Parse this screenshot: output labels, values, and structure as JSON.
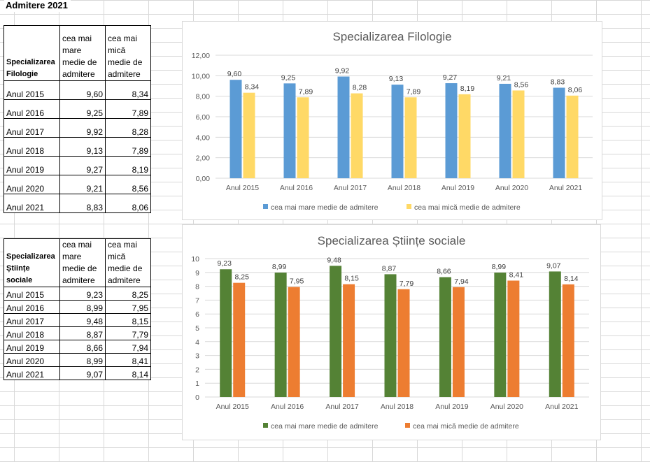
{
  "sheet": {
    "title": "Admitere 2021"
  },
  "table1": {
    "header": [
      "Specializarea Filologie",
      "cea mai mare medie de admitere",
      "cea mai mică medie de admitere"
    ],
    "rows": [
      [
        "Anul 2015",
        "9,60",
        "8,34"
      ],
      [
        "Anul 2016",
        "9,25",
        "7,89"
      ],
      [
        "Anul 2017",
        "9,92",
        "8,28"
      ],
      [
        "Anul 2018",
        "9,13",
        "7,89"
      ],
      [
        "Anul 2019",
        "9,27",
        "8,19"
      ],
      [
        "Anul 2020",
        "9,21",
        "8,56"
      ],
      [
        "Anul 2021",
        "8,83",
        "8,06"
      ]
    ]
  },
  "table2": {
    "header": [
      "Specializarea Științe sociale",
      "cea mai mare medie de admitere",
      "cea mai mică medie de admitere"
    ],
    "rows": [
      [
        "Anul 2015",
        "9,23",
        "8,25"
      ],
      [
        "Anul 2016",
        "8,99",
        "7,95"
      ],
      [
        "Anul 2017",
        "9,48",
        "8,15"
      ],
      [
        "Anul 2018",
        "8,87",
        "7,79"
      ],
      [
        "Anul 2019",
        "8,66",
        "7,94"
      ],
      [
        "Anul 2020",
        "8,99",
        "8,41"
      ],
      [
        "Anul 2021",
        "9,07",
        "8,14"
      ]
    ]
  },
  "chart_data": [
    {
      "type": "bar",
      "title": "Specializarea Filologie",
      "categories": [
        "Anul 2015",
        "Anul 2016",
        "Anul 2017",
        "Anul 2018",
        "Anul 2019",
        "Anul 2020",
        "Anul 2021"
      ],
      "series": [
        {
          "name": "cea mai mare medie de admitere",
          "color": "#5b9bd5",
          "values": [
            9.6,
            9.25,
            9.92,
            9.13,
            9.27,
            9.21,
            8.83
          ]
        },
        {
          "name": "cea mai mică medie de admitere",
          "color": "#ffd966",
          "values": [
            8.34,
            7.89,
            8.28,
            7.89,
            8.19,
            8.56,
            8.06
          ]
        }
      ],
      "ylim": [
        0,
        12
      ],
      "yticks": [
        "0,00",
        "2,00",
        "4,00",
        "6,00",
        "8,00",
        "10,00",
        "12,00"
      ],
      "ytick_values": [
        0,
        2,
        4,
        6,
        8,
        10,
        12
      ],
      "data_label_decimals": 2,
      "grid": true,
      "legend": "bottom"
    },
    {
      "type": "bar",
      "title": "Specializarea Științe sociale",
      "categories": [
        "Anul 2015",
        "Anul 2016",
        "Anul 2017",
        "Anul 2018",
        "Anul 2019",
        "Anul 2020",
        "Anul 2021"
      ],
      "series": [
        {
          "name": "cea mai mare medie de admitere",
          "color": "#548235",
          "values": [
            9.23,
            8.99,
            9.48,
            8.87,
            8.66,
            8.99,
            9.07
          ]
        },
        {
          "name": "cea mai mică medie de admitere",
          "color": "#ed7d31",
          "values": [
            8.25,
            7.95,
            8.15,
            7.79,
            7.94,
            8.41,
            8.14
          ]
        }
      ],
      "ylim": [
        0,
        10
      ],
      "yticks": [
        "0",
        "1",
        "2",
        "3",
        "4",
        "5",
        "6",
        "7",
        "8",
        "9",
        "10"
      ],
      "ytick_values": [
        0,
        1,
        2,
        3,
        4,
        5,
        6,
        7,
        8,
        9,
        10
      ],
      "data_label_decimals": 2,
      "grid": true,
      "legend": "bottom"
    }
  ]
}
